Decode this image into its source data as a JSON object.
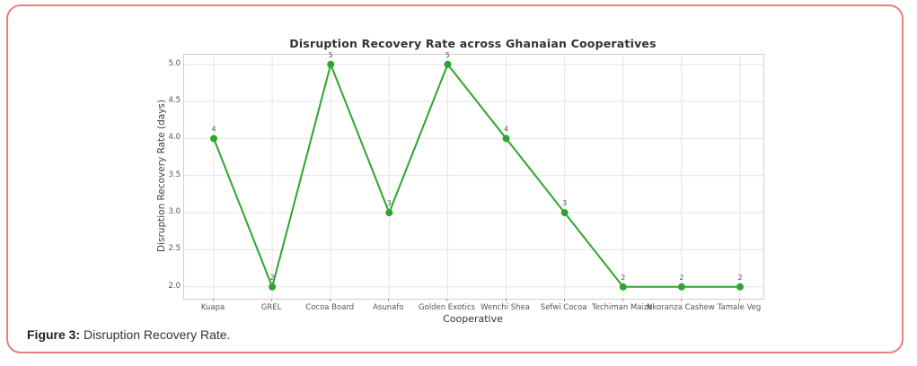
{
  "frame": {
    "border_color": "#ee7d7d"
  },
  "caption": {
    "label": "Figure 3:",
    "text": " Disruption Recovery Rate."
  },
  "chart_data": {
    "type": "line",
    "title": "Disruption Recovery Rate across Ghanaian Cooperatives",
    "xlabel": "Cooperative",
    "ylabel": "Disruption Recovery Rate (days)",
    "categories": [
      "Kuapa",
      "GREL",
      "Cocoa Board",
      "Asunafo",
      "Golden Exotics",
      "Wenchi Shea",
      "Sefwi Cocoa",
      "Techiman Maize",
      "Nkoranza Cashew",
      "Tamale Veg"
    ],
    "values": [
      4,
      2,
      5,
      3,
      5,
      4,
      3,
      2,
      2,
      2
    ],
    "point_labels": [
      "4",
      "2",
      "5",
      "3",
      "5",
      "4",
      "3",
      "2",
      "2",
      "2"
    ],
    "ytick_labels": [
      "2.0",
      "2.5",
      "3.0",
      "3.5",
      "4.0",
      "4.5",
      "5.0"
    ],
    "ytick_values": [
      2.0,
      2.5,
      3.0,
      3.5,
      4.0,
      4.5,
      5.0
    ],
    "ylim": [
      1.84,
      5.13
    ],
    "grid": true,
    "legend": "none",
    "line_color": "#2ea52e",
    "marker": "circle",
    "grid_color": "#e4e4e4",
    "tick_color": "#555555",
    "point_label_color": "#5a5a5a"
  }
}
